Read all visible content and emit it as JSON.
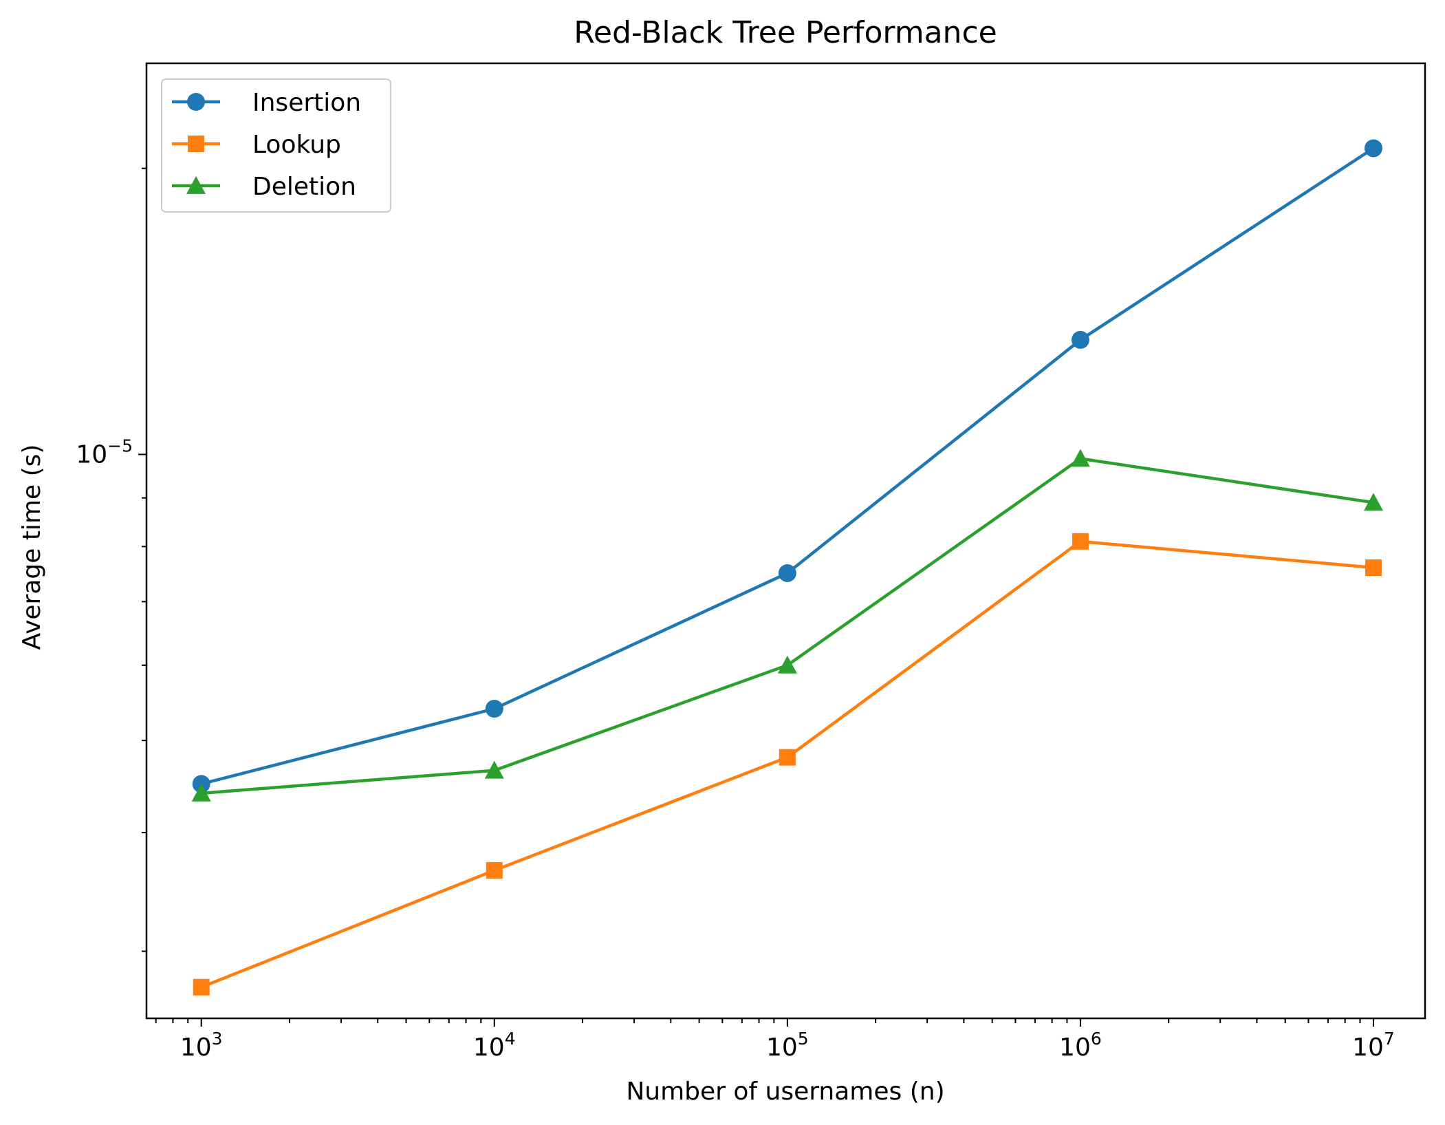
{
  "chart_data": {
    "type": "line",
    "title": "Red-Black Tree Performance",
    "xlabel": "Number of usernames (n)",
    "ylabel": "Average time (s)",
    "x_scale": "log",
    "y_scale": "log",
    "xlim": [
      650,
      15000000
    ],
    "ylim": [
      2.55e-06,
      2.58e-05
    ],
    "x_ticks": [
      {
        "value": 1000,
        "base": "10",
        "exp": "3"
      },
      {
        "value": 10000,
        "base": "10",
        "exp": "4"
      },
      {
        "value": 100000,
        "base": "10",
        "exp": "5"
      },
      {
        "value": 1000000,
        "base": "10",
        "exp": "6"
      },
      {
        "value": 10000000,
        "base": "10",
        "exp": "7"
      }
    ],
    "y_ticks": [
      {
        "value": 1e-05,
        "base": "10",
        "exp": "−5"
      }
    ],
    "grid": false,
    "legend_position": "upper-left",
    "x": [
      1000,
      10000,
      100000,
      1000000,
      10000000
    ],
    "series": [
      {
        "name": "Insertion",
        "color": "#1f77b4",
        "marker": "circle",
        "values": [
          4.5e-06,
          5.4e-06,
          7.5e-06,
          1.32e-05,
          2.1e-05
        ]
      },
      {
        "name": "Lookup",
        "color": "#ff7f0e",
        "marker": "square",
        "values": [
          2.75e-06,
          3.65e-06,
          4.8e-06,
          8.1e-06,
          7.6e-06
        ]
      },
      {
        "name": "Deletion",
        "color": "#2ca02c",
        "marker": "triangle",
        "values": [
          4.4e-06,
          4.65e-06,
          6e-06,
          9.9e-06,
          8.9e-06
        ]
      }
    ]
  }
}
